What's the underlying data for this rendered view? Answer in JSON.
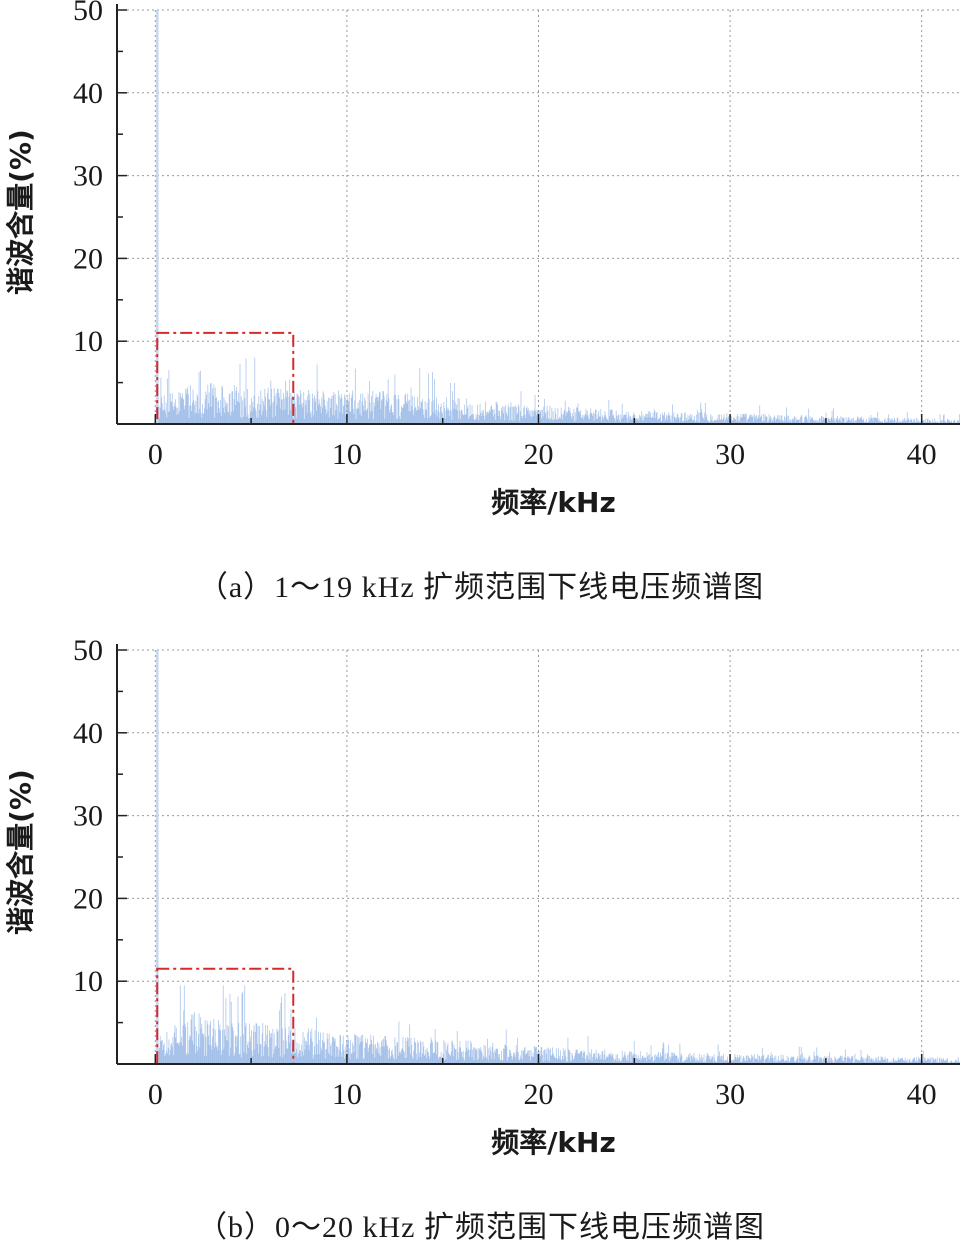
{
  "chart_data": [
    {
      "type": "bar",
      "panel": "a",
      "caption": "（a）1～19 kHz 扩频范围下线电压频谱图",
      "xlabel": "频率/kHz",
      "ylabel": "谐波含量(%)",
      "xlim": [
        -2,
        42
      ],
      "ylim": [
        0,
        50
      ],
      "xticks": [
        0,
        10,
        20,
        30,
        40
      ],
      "yticks": [
        10,
        20,
        30,
        40,
        50
      ],
      "grid": true,
      "fundamental": {
        "x": 0,
        "y": 50
      },
      "envelope": {
        "x": [
          0.2,
          2,
          4,
          7,
          12,
          15,
          20,
          25,
          30,
          35,
          41.5
        ],
        "y": [
          3,
          5,
          4.5,
          4,
          3.8,
          3.2,
          2.2,
          1.5,
          1.3,
          1,
          0.6
        ]
      },
      "peak_max": 8,
      "highlight_box": {
        "x": [
          0.1,
          7.2
        ],
        "y": [
          0,
          11
        ]
      },
      "series_color": "#5b8fd6",
      "box_color": "#d42a2a"
    },
    {
      "type": "bar",
      "panel": "b",
      "caption": "（b）0～20 kHz 扩频范围下线电压频谱图",
      "xlabel": "频率/kHz",
      "ylabel": "谐波含量(%)",
      "xlim": [
        -2,
        42
      ],
      "ylim": [
        0,
        50
      ],
      "xticks": [
        0,
        10,
        20,
        30,
        40
      ],
      "yticks": [
        10,
        20,
        30,
        40,
        50
      ],
      "grid": true,
      "fundamental": {
        "x": 0,
        "y": 50
      },
      "envelope": {
        "x": [
          0.2,
          2,
          4,
          7,
          10,
          15,
          20,
          25,
          30,
          35,
          41.5
        ],
        "y": [
          3.5,
          6,
          5,
          4.5,
          3.5,
          3,
          2,
          1.5,
          1.2,
          1,
          0.8
        ]
      },
      "peak_max": 9.5,
      "highlight_box": {
        "x": [
          0.1,
          7.2
        ],
        "y": [
          0,
          11.5
        ]
      },
      "series_color": "#5b8fd6",
      "box_color": "#d42a2a"
    }
  ]
}
